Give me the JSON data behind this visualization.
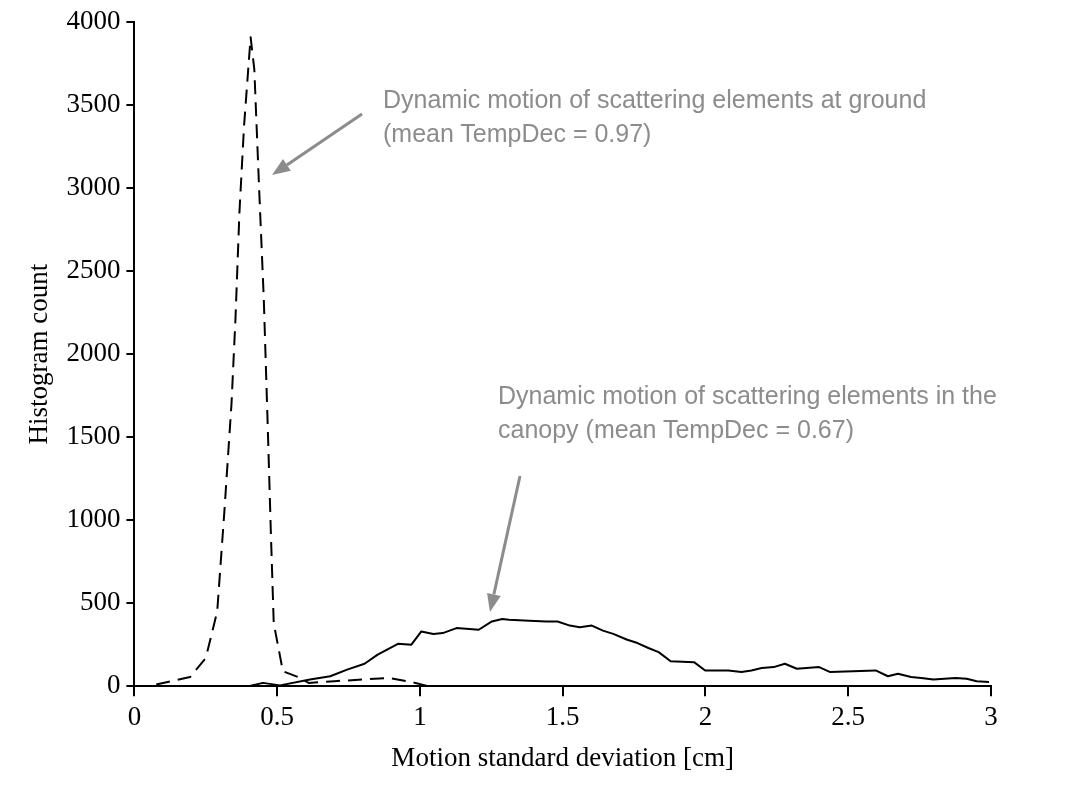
{
  "chart_data": {
    "type": "line",
    "xlabel": "Motion standard deviation [cm]",
    "ylabel": "Histogram count",
    "xlim": [
      0,
      3
    ],
    "xticks": [
      0,
      0.5,
      1,
      1.5,
      2,
      2.5,
      3
    ],
    "ylim": [
      0,
      4000
    ],
    "yticks": [
      0,
      500,
      1000,
      1500,
      2000,
      2500,
      3000,
      3500,
      4000
    ],
    "grid": false,
    "legend": false,
    "marker": "none",
    "annotations": [
      "Dynamic motion of scattering elements at ground (mean TempDec = 0.97)",
      "Dynamic motion of scattering elements in the canopy (mean TempDec = 0.67)"
    ],
    "series": [
      {
        "color": "#000000",
        "line_style": "dashed",
        "x": [
          0,
          0.05,
          0.195,
          0.25,
          0.29,
          0.315,
          0.34,
          0.354,
          0.368,
          0.384,
          0.407,
          0.42,
          0.437,
          0.453,
          0.467,
          0.478,
          0.488,
          0.52,
          0.573,
          0.61,
          0.7,
          0.89,
          0.97,
          1.03,
          3
        ],
        "values": [
          0,
          0,
          55,
          170,
          450,
          1050,
          1700,
          2215,
          2860,
          3375,
          3910,
          3715,
          2990,
          2340,
          1565,
          920,
          380,
          90,
          55,
          20,
          30,
          50,
          25,
          0,
          0
        ]
      },
      {
        "color": "#000000",
        "line_style": "solid",
        "x": [
          0,
          0.4,
          0.45,
          0.51,
          0.615,
          0.686,
          0.745,
          0.806,
          0.852,
          0.923,
          0.97,
          1.005,
          1.047,
          1.08,
          1.128,
          1.206,
          1.252,
          1.288,
          1.312,
          1.383,
          1.443,
          1.482,
          1.525,
          1.56,
          1.602,
          1.641,
          1.677,
          1.726,
          1.762,
          1.8,
          1.836,
          1.878,
          1.96,
          1.999,
          2.08,
          2.126,
          2.161,
          2.197,
          2.239,
          2.278,
          2.32,
          2.398,
          2.437,
          2.596,
          2.639,
          2.674,
          2.72,
          2.756,
          2.798,
          2.876,
          2.915,
          2.95,
          2.993
        ],
        "values": [
          0,
          0,
          20,
          5,
          40,
          60,
          100,
          135,
          190,
          255,
          250,
          330,
          315,
          320,
          350,
          340,
          390,
          405,
          400,
          395,
          390,
          390,
          365,
          355,
          365,
          335,
          315,
          280,
          260,
          230,
          205,
          150,
          145,
          95,
          95,
          85,
          95,
          110,
          115,
          135,
          105,
          115,
          85,
          95,
          60,
          75,
          55,
          50,
          40,
          50,
          45,
          30,
          25
        ]
      }
    ]
  }
}
